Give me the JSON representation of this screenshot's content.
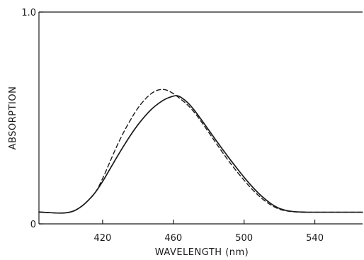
{
  "chart_data": {
    "type": "line",
    "title": "",
    "xlabel": "WAVELENGTH (nm)",
    "ylabel": "ABSORPTION",
    "xlim": [
      384,
      567
    ],
    "ylim": [
      0,
      1.0
    ],
    "x_ticks": [
      420,
      460,
      500,
      540
    ],
    "x_tick_labels": [
      "420",
      "460",
      "500",
      "540"
    ],
    "y_ticks": [
      0,
      1.0
    ],
    "y_tick_labels": [
      "0",
      "1.0"
    ],
    "grid": false,
    "legend": "none",
    "series": [
      {
        "style": "solid",
        "color": "#1a1a1a",
        "x": [
          384,
          390,
          396,
          400,
          404,
          408,
          412,
          416,
          420,
          424,
          428,
          432,
          436,
          440,
          444,
          448,
          452,
          456,
          460,
          462,
          464,
          468,
          472,
          476,
          480,
          484,
          488,
          492,
          496,
          500,
          504,
          508,
          512,
          516,
          520,
          524,
          528,
          532,
          536,
          540,
          545,
          550,
          555,
          560,
          567
        ],
        "y": [
          0.056,
          0.053,
          0.051,
          0.053,
          0.062,
          0.082,
          0.112,
          0.15,
          0.2,
          0.257,
          0.314,
          0.369,
          0.421,
          0.468,
          0.509,
          0.544,
          0.571,
          0.591,
          0.603,
          0.605,
          0.599,
          0.573,
          0.535,
          0.49,
          0.443,
          0.396,
          0.35,
          0.305,
          0.262,
          0.22,
          0.181,
          0.146,
          0.116,
          0.091,
          0.073,
          0.063,
          0.058,
          0.056,
          0.055,
          0.055,
          0.055,
          0.055,
          0.055,
          0.055,
          0.055
        ]
      },
      {
        "style": "dashed",
        "color": "#1a1a1a",
        "x": [
          384,
          390,
          396,
          400,
          404,
          408,
          412,
          416,
          420,
          424,
          428,
          432,
          436,
          440,
          444,
          448,
          452,
          456,
          460,
          462,
          464,
          468,
          472,
          476,
          480,
          484,
          488,
          492,
          496,
          500,
          504,
          508,
          512,
          516,
          520,
          524,
          528,
          532,
          536,
          540,
          545,
          550,
          555,
          560,
          567
        ],
        "y": [
          0.056,
          0.053,
          0.051,
          0.053,
          0.062,
          0.082,
          0.112,
          0.15,
          0.214,
          0.29,
          0.366,
          0.434,
          0.494,
          0.547,
          0.588,
          0.618,
          0.633,
          0.632,
          0.615,
          0.603,
          0.59,
          0.562,
          0.525,
          0.48,
          0.432,
          0.383,
          0.335,
          0.289,
          0.246,
          0.206,
          0.168,
          0.135,
          0.107,
          0.085,
          0.069,
          0.061,
          0.057,
          0.055,
          0.055,
          0.055,
          0.055,
          0.055,
          0.055,
          0.055,
          0.055
        ]
      }
    ]
  }
}
